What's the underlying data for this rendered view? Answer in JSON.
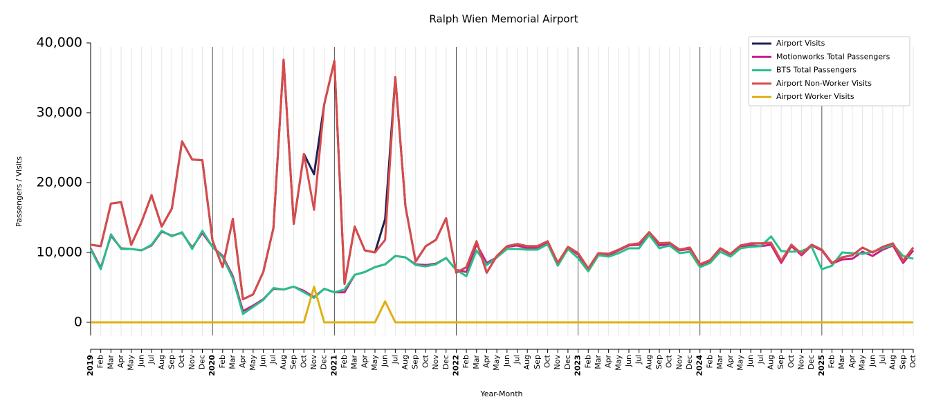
{
  "chart_data": {
    "type": "line",
    "title": "Ralph Wien Memorial Airport",
    "xlabel": "Year-Month",
    "ylabel": "Passengers / Visits",
    "categories": [
      "2019",
      "Feb",
      "Mar",
      "Apr",
      "May",
      "Jun",
      "Jul",
      "Aug",
      "Sep",
      "Oct",
      "Nov",
      "Dec",
      "2020",
      "Feb",
      "Mar",
      "Apr",
      "May",
      "Jun",
      "Jul",
      "Aug",
      "Sep",
      "Oct",
      "Nov",
      "Dec",
      "2021",
      "Feb",
      "Mar",
      "Apr",
      "May",
      "Jun",
      "Jul",
      "Aug",
      "Sep",
      "Oct",
      "Nov",
      "Dec",
      "2022",
      "Feb",
      "Mar",
      "Apr",
      "May",
      "Jun",
      "Jul",
      "Aug",
      "Sep",
      "Oct",
      "Nov",
      "Dec",
      "2023",
      "Feb",
      "Mar",
      "Apr",
      "May",
      "Jun",
      "Jul",
      "Aug",
      "Sep",
      "Oct",
      "Nov",
      "Dec",
      "2024",
      "Feb",
      "Mar",
      "Apr",
      "May",
      "Jun",
      "Jul",
      "Aug",
      "Sep",
      "Oct",
      "Nov",
      "Dec",
      "2025",
      "Feb",
      "Mar",
      "Apr",
      "May",
      "Jun",
      "Jul",
      "Aug",
      "Sep",
      "Oct"
    ],
    "ylim": [
      -2000,
      40000
    ],
    "yticks": [
      {
        "value": 0,
        "label": "0"
      },
      {
        "value": 10000,
        "label": "10,000"
      },
      {
        "value": 20000,
        "label": "20,000"
      },
      {
        "value": 30000,
        "label": "30,000"
      },
      {
        "value": 40000,
        "label": "40,000"
      }
    ],
    "legend": "upper right",
    "series": [
      {
        "name": "Airport Visits",
        "color": "#1f2052",
        "values": [
          11100,
          10900,
          17000,
          17200,
          11100,
          14300,
          18200,
          13700,
          16300,
          25900,
          23300,
          23200,
          11700,
          7900,
          14800,
          3300,
          4000,
          7200,
          13500,
          37600,
          14100,
          24100,
          21200,
          31200,
          37400,
          5500,
          13700,
          10300,
          10000,
          14800,
          35100,
          16600,
          8700,
          10900,
          11800,
          14900,
          7100,
          7900,
          11600,
          7100,
          9500,
          10900,
          11200,
          10900,
          10900,
          11600,
          8500,
          10800,
          9900,
          7700,
          9900,
          9800,
          10400,
          11100,
          11300,
          12900,
          11300,
          11400,
          10400,
          10700,
          8300,
          8900,
          10600,
          9800,
          11000,
          11300,
          11300,
          11400,
          8800,
          11100,
          9800,
          11100,
          10400,
          8500,
          9300,
          9600,
          10700,
          10000,
          10800,
          11300,
          8800,
          10700
        ]
      },
      {
        "name": "Motionworks Total Passengers",
        "color": "#c91d87",
        "values": [
          10600,
          7800,
          12400,
          10600,
          10500,
          10300,
          11000,
          13000,
          12400,
          12800,
          10700,
          12800,
          10800,
          9500,
          6600,
          1600,
          2400,
          3300,
          4800,
          4700,
          5100,
          4500,
          3600,
          4800,
          4300,
          4300,
          6800,
          7200,
          7900,
          8300,
          9500,
          9300,
          8300,
          8200,
          8400,
          9200,
          7500,
          7200,
          11200,
          8500,
          9300,
          10800,
          11000,
          10600,
          10700,
          11500,
          8300,
          10700,
          9700,
          7500,
          9800,
          9600,
          10300,
          11000,
          11100,
          12700,
          11000,
          11200,
          10300,
          10500,
          8000,
          8800,
          10500,
          9700,
          10900,
          11000,
          10900,
          11100,
          8500,
          10900,
          9600,
          11000,
          10300,
          8400,
          9000,
          9100,
          10100,
          9500,
          10400,
          11000,
          8500,
          10300
        ]
      },
      {
        "name": "BTS Total Passengers",
        "color": "#27c08a",
        "values": [
          10500,
          7600,
          12600,
          10500,
          10500,
          10300,
          11100,
          13100,
          12300,
          12900,
          10500,
          13100,
          10800,
          9300,
          6300,
          1200,
          2200,
          3200,
          4900,
          4700,
          5100,
          4300,
          3500,
          4800,
          4300,
          4700,
          6800,
          7200,
          7900,
          8300,
          9500,
          9300,
          8200,
          8000,
          8300,
          9200,
          7500,
          6600,
          10300,
          8200,
          9300,
          10500,
          10500,
          10400,
          10400,
          11200,
          8100,
          10500,
          9200,
          7300,
          9600,
          9400,
          9900,
          10600,
          10600,
          12500,
          10600,
          11000,
          9900,
          10100,
          7900,
          8500,
          10100,
          9400,
          10600,
          10800,
          10900,
          12300,
          10200,
          10100,
          10200,
          10800,
          7600,
          8100,
          10000,
          9900,
          9800,
          10100,
          10600,
          11100,
          9500,
          9100
        ]
      },
      {
        "name": "Airport Non-Worker Visits",
        "color": "#d94b4b",
        "values": [
          11100,
          10900,
          17000,
          17200,
          11100,
          14300,
          18200,
          13700,
          16300,
          25900,
          23300,
          23200,
          11700,
          7900,
          14800,
          3300,
          4000,
          7200,
          13500,
          37600,
          14100,
          24100,
          16100,
          31200,
          37400,
          5500,
          13700,
          10300,
          10000,
          11800,
          35100,
          16600,
          8700,
          10900,
          11800,
          14900,
          7100,
          7900,
          11600,
          7100,
          9500,
          10900,
          11200,
          10900,
          10900,
          11600,
          8500,
          10800,
          9900,
          7700,
          9900,
          9800,
          10400,
          11100,
          11300,
          12900,
          11300,
          11400,
          10400,
          10700,
          8300,
          8900,
          10600,
          9800,
          11000,
          11300,
          11300,
          11400,
          8800,
          11100,
          9800,
          11100,
          10400,
          8500,
          9300,
          9600,
          10700,
          10000,
          10800,
          11300,
          8800,
          10700
        ]
      },
      {
        "name": "Airport Worker Visits",
        "color": "#e0b010",
        "values": [
          0,
          0,
          0,
          0,
          0,
          0,
          0,
          0,
          0,
          0,
          0,
          0,
          0,
          0,
          0,
          0,
          0,
          0,
          0,
          0,
          0,
          0,
          5100,
          0,
          0,
          0,
          0,
          0,
          0,
          3000,
          0,
          0,
          0,
          0,
          0,
          0,
          0,
          0,
          0,
          0,
          0,
          0,
          0,
          0,
          0,
          0,
          0,
          0,
          0,
          0,
          0,
          0,
          0,
          0,
          0,
          0,
          0,
          0,
          0,
          0,
          0,
          0,
          0,
          0,
          0,
          0,
          0,
          0,
          0,
          0,
          0,
          0,
          0,
          0,
          0,
          0,
          0,
          0,
          0,
          0,
          0,
          0
        ]
      }
    ]
  }
}
